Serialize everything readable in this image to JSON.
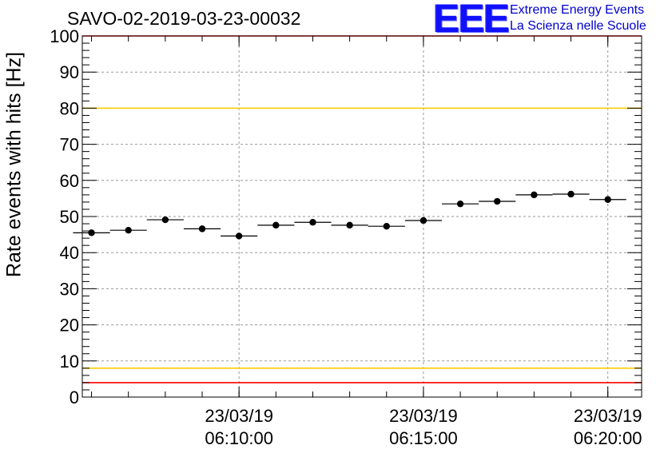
{
  "chart_title": "SAVO-02-2019-03-23-00032",
  "logo": {
    "letters": "EEE",
    "line1": "Extreme Energy Events",
    "line2": "La Scienza nelle Scuole"
  },
  "chart_data": {
    "type": "scatter",
    "title": "SAVO-02-2019-03-23-00032",
    "xlabel": "",
    "ylabel": "Rate events with hits [Hz]",
    "ylim": [
      0,
      100
    ],
    "xlim_seconds_after_06_05_45": [
      0,
      910
    ],
    "y_ticks": [
      "0",
      "10",
      "20",
      "30",
      "40",
      "50",
      "60",
      "70",
      "80",
      "90",
      "100"
    ],
    "x_ticks": [
      {
        "date": "23/03/19",
        "time": "06:10:00"
      },
      {
        "date": "23/03/19",
        "time": "06:15:00"
      },
      {
        "date": "23/03/19",
        "time": "06:20:00"
      }
    ],
    "grid": true,
    "reference_lines": [
      {
        "y": 100,
        "color": "#ff0000"
      },
      {
        "y": 80,
        "color": "#ffcc00"
      },
      {
        "y": 8,
        "color": "#ffcc00"
      },
      {
        "y": 4,
        "color": "#ff0000"
      }
    ],
    "points_time": [
      "06:06:00",
      "06:07:00",
      "06:08:00",
      "06:09:00",
      "06:10:00",
      "06:11:00",
      "06:12:00",
      "06:13:00",
      "06:14:00",
      "06:15:00",
      "06:16:00",
      "06:17:00",
      "06:18:00",
      "06:19:00",
      "06:20:00"
    ],
    "values": [
      45.5,
      46.2,
      49.1,
      46.6,
      44.6,
      47.6,
      48.4,
      47.6,
      47.3,
      48.9,
      53.5,
      54.2,
      56.0,
      56.2,
      54.7
    ],
    "marker_color": "#000000"
  }
}
